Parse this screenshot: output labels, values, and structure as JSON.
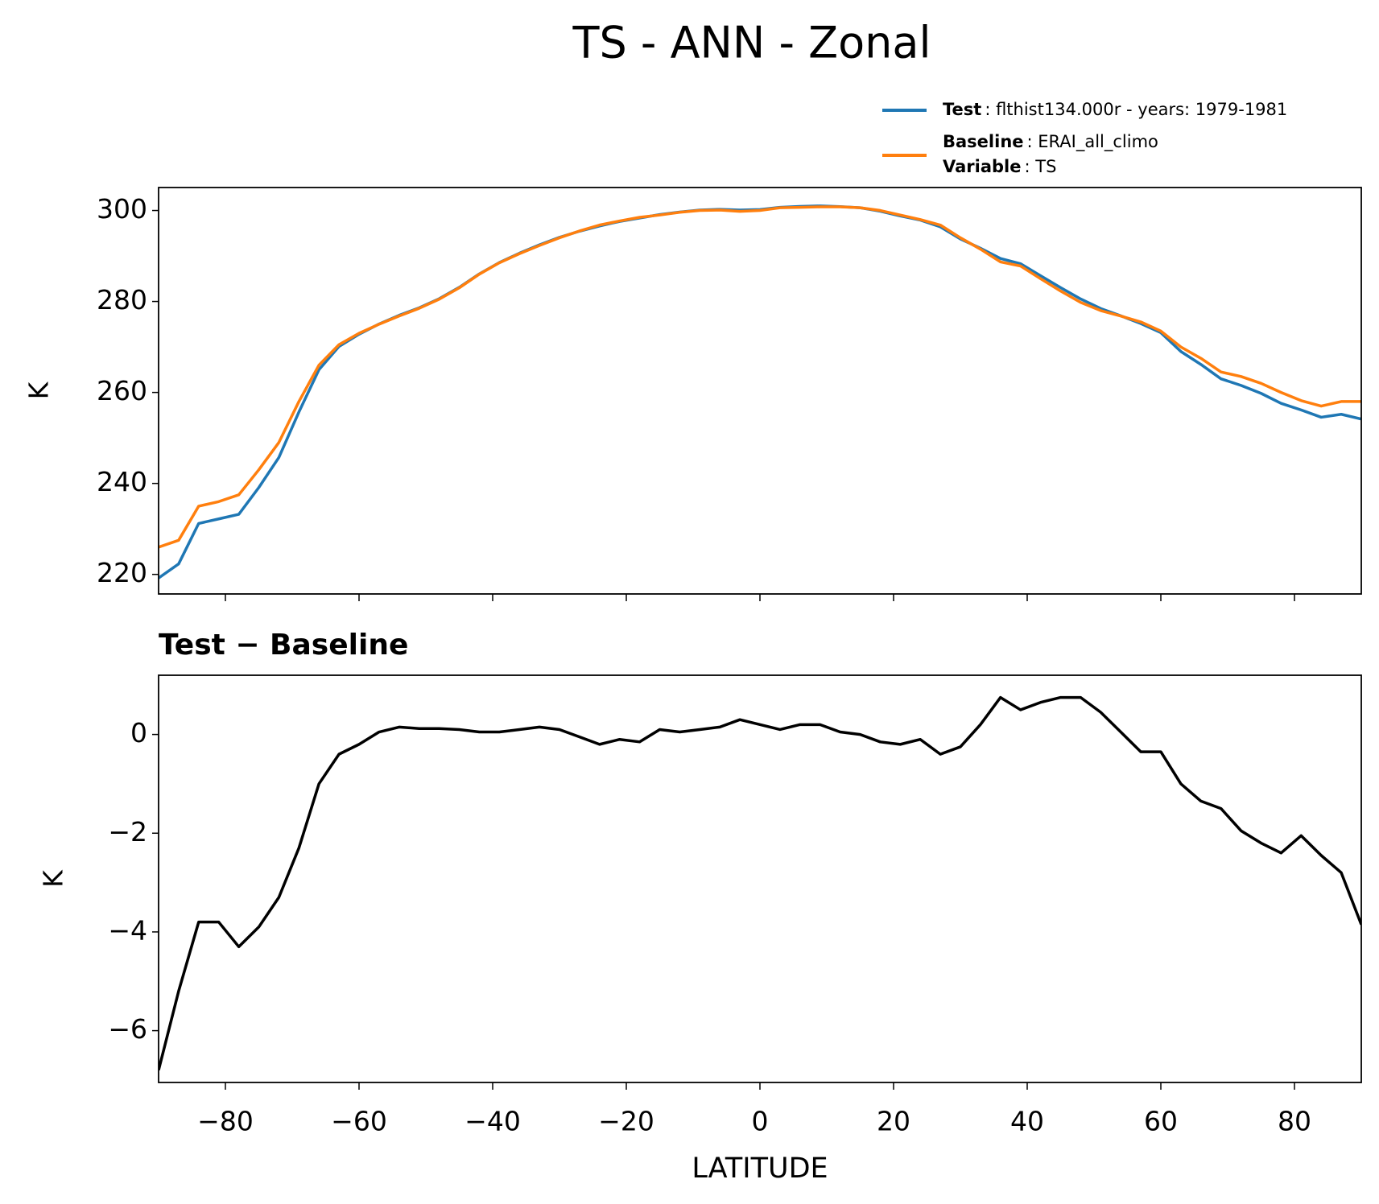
{
  "chart_data": [
    {
      "type": "line",
      "title": "TS - ANN - Zonal",
      "ylabel": "K",
      "x": [
        -90,
        -87,
        -84,
        -81,
        -78,
        -75,
        -72,
        -69,
        -66,
        -63,
        -60,
        -57,
        -54,
        -51,
        -48,
        -45,
        -42,
        -39,
        -36,
        -33,
        -30,
        -27,
        -24,
        -21,
        -18,
        -15,
        -12,
        -9,
        -6,
        -3,
        0,
        3,
        6,
        9,
        12,
        15,
        18,
        21,
        24,
        27,
        30,
        33,
        36,
        39,
        42,
        45,
        48,
        51,
        54,
        57,
        60,
        63,
        66,
        69,
        72,
        75,
        78,
        81,
        84,
        87,
        90
      ],
      "series": [
        {
          "name": "Test",
          "description": ": flthist134.000r - years: 1979-1981",
          "color": "#1f77b4",
          "values": [
            219.2,
            222.3,
            231.2,
            232.2,
            233.2,
            239.1,
            245.7,
            255.7,
            265,
            270.1,
            272.8,
            275.05,
            276.95,
            278.6,
            280.6,
            283.1,
            286.05,
            288.55,
            290.6,
            292.45,
            294.1,
            295.45,
            296.6,
            297.6,
            298.35,
            299.1,
            299.65,
            300.1,
            300.25,
            300.1,
            300.2,
            300.7,
            300.9,
            301,
            300.85,
            300.6,
            299.85,
            298.8,
            297.9,
            296.4,
            293.75,
            291.7,
            289.45,
            288.3,
            285.65,
            283.05,
            280.55,
            278.45,
            276.85,
            275.15,
            273.15,
            269,
            266.15,
            263,
            261.55,
            259.8,
            257.6,
            256.15,
            254.55,
            255.2,
            254.15
          ]
        },
        {
          "name": "Baseline",
          "description": ": ERAI_all_climo",
          "variable_label": "Variable",
          "variable_value": ": TS",
          "color": "#ff7f0e",
          "values": [
            226,
            227.5,
            235,
            236,
            237.5,
            243,
            249,
            258,
            266,
            270.5,
            273,
            275,
            276.8,
            278.5,
            280.5,
            283,
            286,
            288.5,
            290.5,
            292.3,
            294,
            295.5,
            296.8,
            297.7,
            298.5,
            299,
            299.6,
            300,
            300.1,
            299.8,
            300,
            300.6,
            300.7,
            300.8,
            300.8,
            300.6,
            300,
            299,
            298,
            296.8,
            294,
            291.5,
            288.7,
            287.8,
            285,
            282.3,
            279.8,
            278,
            276.8,
            275.5,
            273.5,
            270,
            267.5,
            264.5,
            263.5,
            262,
            260,
            258.2,
            257,
            258,
            258
          ]
        }
      ],
      "xlim": [
        -90,
        90
      ],
      "ylim": [
        215.7,
        305.05
      ],
      "yticks": [
        220,
        240,
        260,
        280,
        300
      ]
    },
    {
      "type": "line",
      "title": "Test − Baseline",
      "ylabel": "K",
      "xlabel": "LATITUDE",
      "x": [
        -90,
        -87,
        -84,
        -81,
        -78,
        -75,
        -72,
        -69,
        -66,
        -63,
        -60,
        -57,
        -54,
        -51,
        -48,
        -45,
        -42,
        -39,
        -36,
        -33,
        -30,
        -27,
        -24,
        -21,
        -18,
        -15,
        -12,
        -9,
        -6,
        -3,
        0,
        3,
        6,
        9,
        12,
        15,
        18,
        21,
        24,
        27,
        30,
        33,
        36,
        39,
        42,
        45,
        48,
        51,
        54,
        57,
        60,
        63,
        66,
        69,
        72,
        75,
        78,
        81,
        84,
        87,
        90
      ],
      "series": [
        {
          "color": "#000000",
          "values": [
            -6.8,
            -5.2,
            -3.8,
            -3.8,
            -4.3,
            -3.9,
            -3.3,
            -2.3,
            -1.0,
            -0.4,
            -0.2,
            0.05,
            0.15,
            0.12,
            0.12,
            0.1,
            0.05,
            0.05,
            0.1,
            0.15,
            0.1,
            -0.05,
            -0.2,
            -0.1,
            -0.15,
            0.1,
            0.05,
            0.1,
            0.15,
            0.3,
            0.2,
            0.1,
            0.2,
            0.2,
            0.05,
            0.0,
            -0.15,
            -0.2,
            -0.1,
            -0.4,
            -0.25,
            0.2,
            0.75,
            0.5,
            0.65,
            0.75,
            0.75,
            0.45,
            0.05,
            -0.35,
            -0.35,
            -1.0,
            -1.35,
            -1.5,
            -1.95,
            -2.2,
            -2.4,
            -2.05,
            -2.45,
            -2.8,
            -3.85
          ]
        }
      ],
      "xlim": [
        -90,
        90
      ],
      "xticks": [
        {
          "value": -80,
          "label": "−80"
        },
        {
          "value": -60,
          "label": "−60"
        },
        {
          "value": -40,
          "label": "−40"
        },
        {
          "value": -20,
          "label": "−20"
        },
        0,
        20,
        40,
        60,
        80
      ],
      "ylim": [
        -7.05,
        1.2
      ],
      "yticks": [
        {
          "value": -6,
          "label": "−6"
        },
        {
          "value": -4,
          "label": "−4"
        },
        {
          "value": -2,
          "label": "−2"
        },
        0
      ]
    }
  ]
}
